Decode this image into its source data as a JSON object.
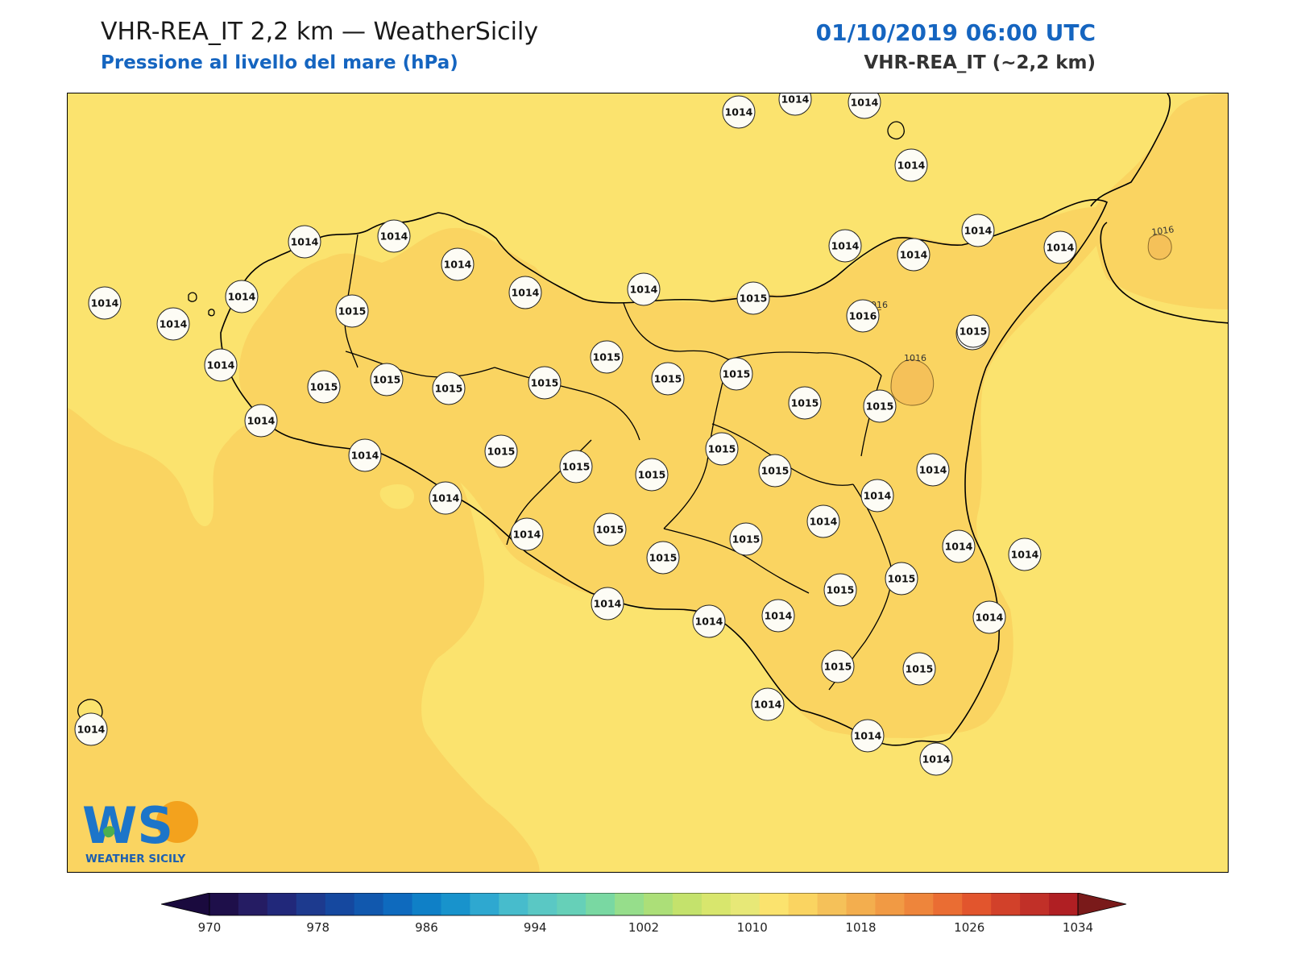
{
  "header": {
    "title": "VHR-REA_IT 2,2 km — WeatherSicily",
    "subtitle": "Pressione al livello del mare (hPa)",
    "datetime": "01/10/2019 06:00 UTC",
    "model": "VHR-REA_IT (~2,2 km)"
  },
  "map": {
    "field": "mean sea level pressure",
    "units": "hPa",
    "isolines": [
      {
        "label": "1016"
      },
      {
        "label": "1016"
      },
      {
        "label": "1016"
      }
    ],
    "stations": [
      {
        "value": "1014"
      },
      {
        "value": "1014"
      },
      {
        "value": "1014"
      },
      {
        "value": "1014"
      },
      {
        "value": "1014"
      },
      {
        "value": "1014"
      },
      {
        "value": "1014"
      },
      {
        "value": "1014"
      },
      {
        "value": "1014"
      },
      {
        "value": "1014"
      },
      {
        "value": "1014"
      },
      {
        "value": "1014"
      },
      {
        "value": "1014"
      },
      {
        "value": "1014"
      },
      {
        "value": "1014"
      },
      {
        "value": "1014"
      },
      {
        "value": "1015"
      },
      {
        "value": "1015"
      },
      {
        "value": "1015"
      },
      {
        "value": "1015"
      },
      {
        "value": "1015"
      },
      {
        "value": "1015"
      },
      {
        "value": "1015"
      },
      {
        "value": "1016"
      },
      {
        "value": "1015"
      },
      {
        "value": "1015"
      },
      {
        "value": "1015"
      },
      {
        "value": "1015"
      },
      {
        "value": "1015"
      },
      {
        "value": "1014"
      },
      {
        "value": "1015"
      },
      {
        "value": "1015"
      },
      {
        "value": "1015"
      },
      {
        "value": "1015"
      },
      {
        "value": "1015"
      },
      {
        "value": "1014"
      },
      {
        "value": "1014"
      },
      {
        "value": "1014"
      },
      {
        "value": "1015"
      },
      {
        "value": "1015"
      },
      {
        "value": "1015"
      },
      {
        "value": "1014"
      },
      {
        "value": "1014"
      },
      {
        "value": "1014"
      },
      {
        "value": "1015"
      },
      {
        "value": "1015"
      },
      {
        "value": "1014"
      },
      {
        "value": "1014"
      },
      {
        "value": "1014"
      },
      {
        "value": "1015"
      },
      {
        "value": "1014"
      },
      {
        "value": "1014"
      },
      {
        "value": "1014"
      },
      {
        "value": "1014"
      },
      {
        "value": "1015"
      },
      {
        "value": "1014"
      },
      {
        "value": "1014"
      },
      {
        "value": "1014"
      },
      {
        "value": "1014"
      },
      {
        "value": "1015"
      }
    ],
    "colors": {
      "band_1014": "#fbe36e",
      "band_1016": "#fad461",
      "band_1018": "#f5c159",
      "coastline": "#000000"
    }
  },
  "logo": {
    "text_ws": "WS",
    "text_name": "WEATHER SICILY"
  },
  "colorbar": {
    "min": 970,
    "max": 1034,
    "step": 2,
    "tick_labels": [
      "970",
      "978",
      "986",
      "994",
      "1002",
      "1010",
      "1018",
      "1026",
      "1034"
    ],
    "colors": [
      "#1e0f4a",
      "#251c63",
      "#21287a",
      "#1d3a8e",
      "#15489f",
      "#1158ae",
      "#0e6abe",
      "#0f80c7",
      "#1893cc",
      "#2ea8d0",
      "#47bccc",
      "#5ac8c4",
      "#66d0b8",
      "#79d8a2",
      "#96de8b",
      "#acdf78",
      "#c4e26c",
      "#d8e66d",
      "#e7e877",
      "#fbe36e",
      "#fad461",
      "#f5c159",
      "#f3ae4e",
      "#f19a44",
      "#ee853b",
      "#ea6d33",
      "#e2552d",
      "#d2412a",
      "#c13028",
      "#b01f23"
    ],
    "under_color": "#1a0a3e",
    "over_color": "#7a1a1a"
  }
}
